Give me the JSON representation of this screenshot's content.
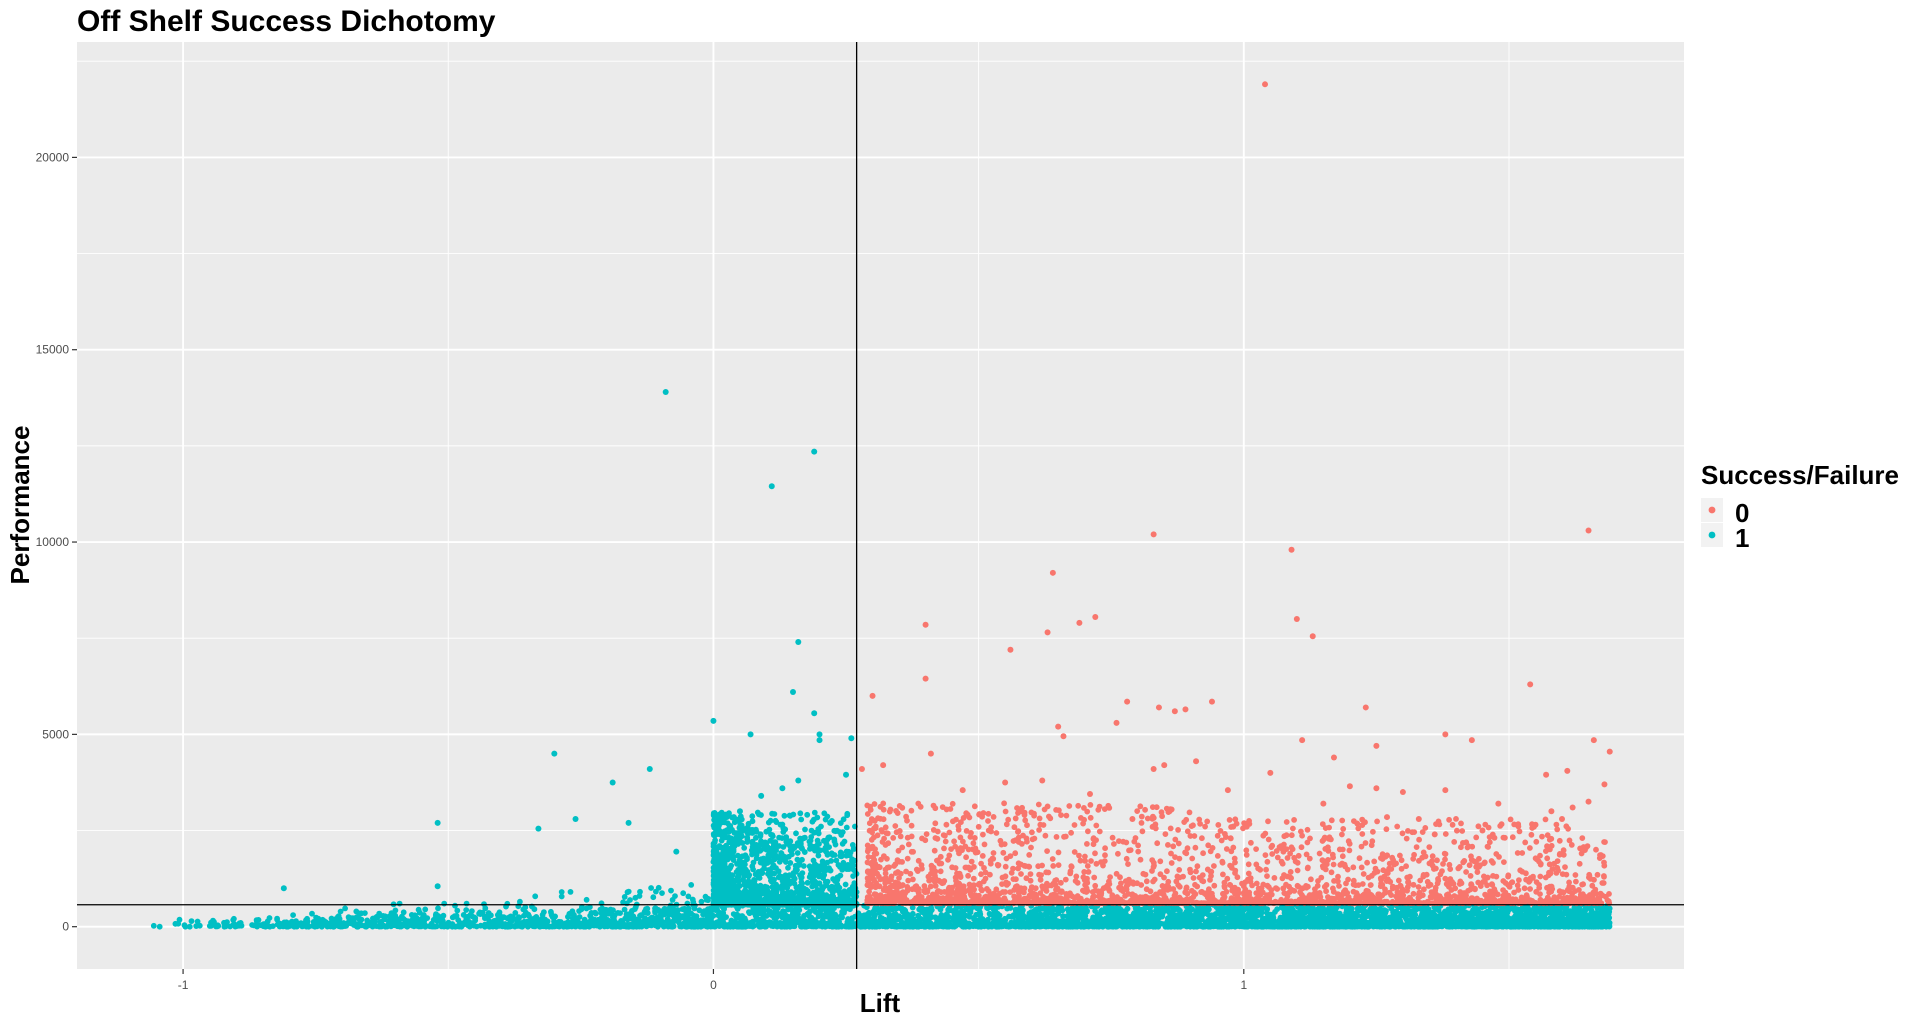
{
  "chart_data": {
    "type": "scatter",
    "title": "Off Shelf Success Dichotomy",
    "xlabel": "Lift",
    "ylabel": "Performance",
    "xlim": [
      -1.2,
      1.83
    ],
    "ylim": [
      -1100,
      23000
    ],
    "x_ticks": [
      -1,
      0,
      1
    ],
    "x_tick_labels": [
      "-1",
      "0",
      "1"
    ],
    "y_ticks": [
      0,
      5000,
      10000,
      15000,
      20000
    ],
    "y_tick_labels": [
      "0",
      "5000",
      "10000",
      "15000",
      "20000"
    ],
    "grid": true,
    "reference_lines": {
      "vertical_x": 0.27,
      "horizontal_y": 570
    },
    "legend": {
      "title": "Success/Failure",
      "position": "right",
      "entries": [
        {
          "label": "0",
          "color": "#F8766D"
        },
        {
          "label": "1",
          "color": "#00BFC4"
        }
      ]
    },
    "series": [
      {
        "name": "0",
        "color": "#F8766D",
        "points": [
          [
            1.04,
            21900
          ],
          [
            1.65,
            10300
          ],
          [
            0.83,
            10200
          ],
          [
            1.09,
            9800
          ],
          [
            0.64,
            9200
          ],
          [
            0.72,
            8050
          ],
          [
            0.69,
            7900
          ],
          [
            0.4,
            7850
          ],
          [
            1.1,
            8000
          ],
          [
            1.13,
            7550
          ],
          [
            0.63,
            7650
          ],
          [
            0.56,
            7200
          ],
          [
            0.4,
            6450
          ],
          [
            1.54,
            6300
          ],
          [
            0.3,
            6000
          ],
          [
            0.78,
            5850
          ],
          [
            0.84,
            5700
          ],
          [
            0.87,
            5600
          ],
          [
            0.89,
            5650
          ],
          [
            0.94,
            5850
          ],
          [
            1.23,
            5700
          ],
          [
            0.65,
            5200
          ],
          [
            0.76,
            5300
          ],
          [
            0.66,
            4950
          ],
          [
            1.38,
            5000
          ],
          [
            1.43,
            4850
          ],
          [
            1.11,
            4850
          ],
          [
            0.41,
            4500
          ],
          [
            1.25,
            4700
          ],
          [
            1.69,
            4550
          ],
          [
            1.66,
            4850
          ],
          [
            0.32,
            4200
          ],
          [
            0.28,
            4100
          ],
          [
            1.17,
            4400
          ],
          [
            0.85,
            4200
          ],
          [
            0.91,
            4300
          ],
          [
            0.83,
            4100
          ],
          [
            1.57,
            3950
          ],
          [
            1.61,
            4050
          ],
          [
            1.05,
            4000
          ],
          [
            0.55,
            3750
          ],
          [
            0.62,
            3800
          ],
          [
            1.2,
            3650
          ],
          [
            1.25,
            3600
          ],
          [
            1.3,
            3500
          ],
          [
            0.47,
            3550
          ],
          [
            0.71,
            3450
          ],
          [
            0.97,
            3550
          ],
          [
            1.38,
            3550
          ],
          [
            1.68,
            3700
          ],
          [
            1.58,
            3000
          ],
          [
            1.62,
            3100
          ],
          [
            1.65,
            3250
          ],
          [
            1.55,
            2650
          ],
          [
            0.58,
            3000
          ],
          [
            0.86,
            3000
          ],
          [
            0.79,
            2800
          ],
          [
            1.15,
            3200
          ],
          [
            0.98,
            2600
          ],
          [
            1.36,
            2400
          ],
          [
            1.45,
            2500
          ],
          [
            1.6,
            2800
          ],
          [
            1.48,
            3200
          ],
          [
            1.33,
            2800
          ],
          [
            1.27,
            2850
          ]
        ]
      },
      {
        "name": "1",
        "color": "#00BFC4",
        "points": [
          [
            -0.09,
            13900
          ],
          [
            0.19,
            12350
          ],
          [
            0.11,
            11450
          ],
          [
            0.16,
            7400
          ],
          [
            0.15,
            6100
          ],
          [
            0.19,
            5550
          ],
          [
            0.2,
            5000
          ],
          [
            0.2,
            4850
          ],
          [
            0.0,
            5350
          ],
          [
            0.07,
            5000
          ],
          [
            0.26,
            4900
          ],
          [
            -0.3,
            4500
          ],
          [
            -0.12,
            4100
          ],
          [
            -0.19,
            3750
          ],
          [
            0.25,
            3950
          ],
          [
            0.16,
            3800
          ],
          [
            0.13,
            3600
          ],
          [
            0.09,
            3400
          ],
          [
            0.05,
            3000
          ],
          [
            -0.16,
            2700
          ],
          [
            -0.26,
            2800
          ],
          [
            -0.33,
            2550
          ],
          [
            -0.52,
            2700
          ],
          [
            -0.81,
            1000
          ],
          [
            -0.52,
            1050
          ],
          [
            -0.07,
            1950
          ],
          [
            0.03,
            2200
          ],
          [
            0.22,
            2700
          ],
          [
            0.17,
            2300
          ]
        ]
      }
    ]
  }
}
